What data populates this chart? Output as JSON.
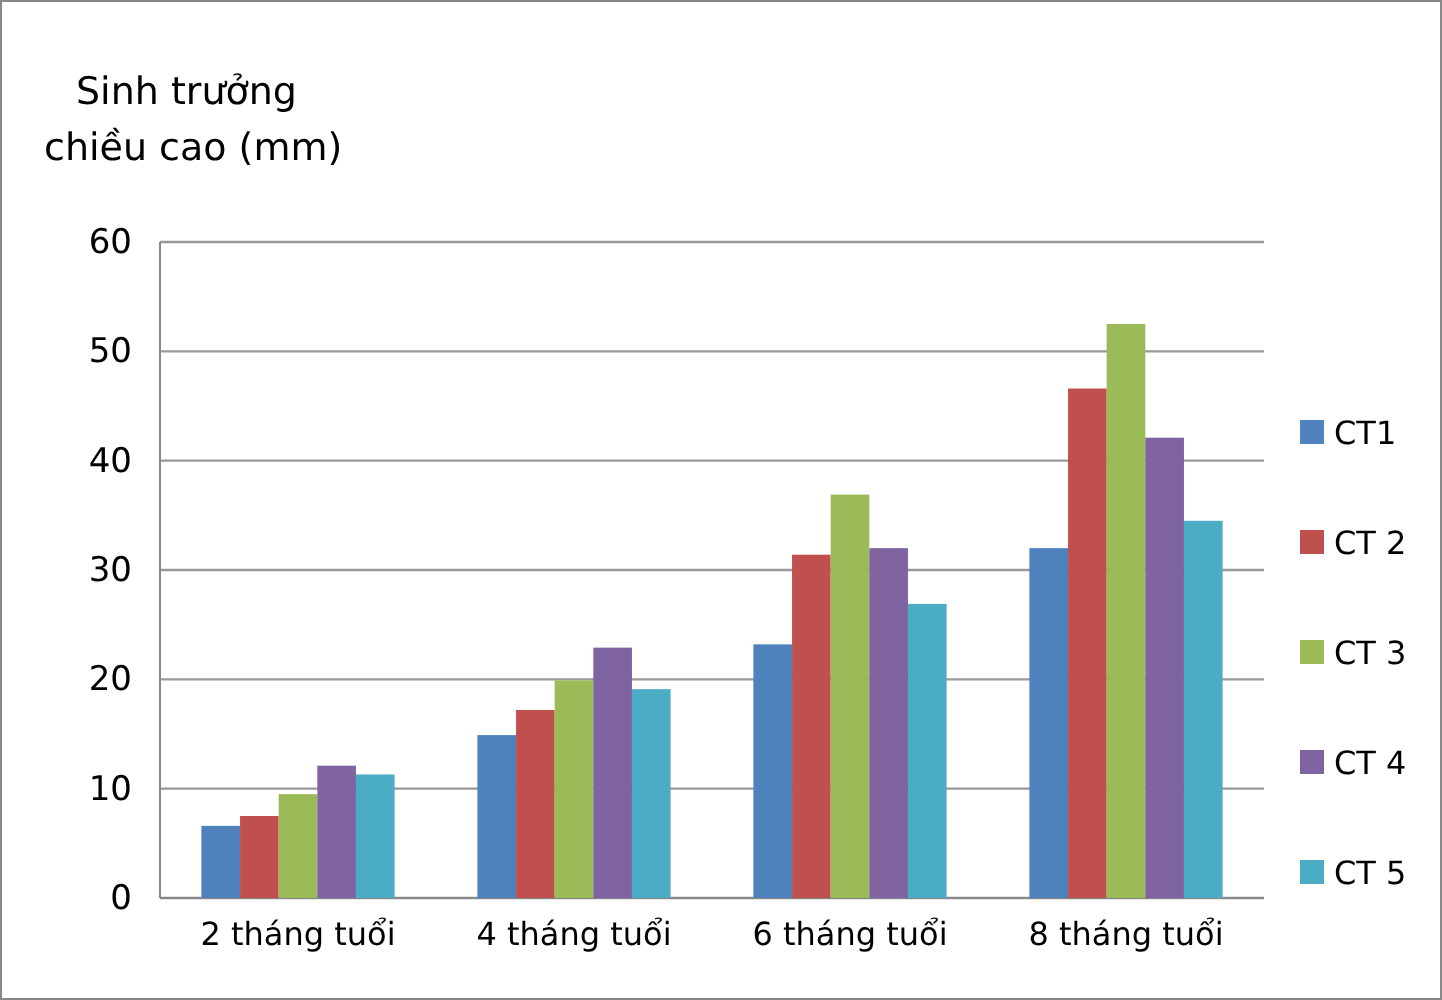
{
  "chart_data": {
    "type": "bar",
    "ylabel": "Sinh trưởng\nchiều cao (mm)",
    "categories": [
      "2 tháng tuổi",
      "4 tháng tuổi",
      "6 tháng tuổi",
      "8 tháng tuổi"
    ],
    "series": [
      {
        "name": "CT1",
        "color": "#4f81bd",
        "values": [
          6.6,
          14.9,
          23.2,
          32.0
        ]
      },
      {
        "name": "CT 2",
        "color": "#c0504d",
        "values": [
          7.5,
          17.2,
          31.4,
          46.6
        ]
      },
      {
        "name": "CT 3",
        "color": "#9bbb59",
        "values": [
          9.5,
          19.9,
          36.9,
          52.5
        ]
      },
      {
        "name": "CT 4",
        "color": "#8064a2",
        "values": [
          12.1,
          22.9,
          32.0,
          42.1
        ]
      },
      {
        "name": "CT 5",
        "color": "#4bacc6",
        "values": [
          11.3,
          19.1,
          26.9,
          34.5
        ]
      }
    ],
    "ylim": [
      0,
      60
    ],
    "yticks": [
      0,
      10,
      20,
      30,
      40,
      50,
      60
    ],
    "grid": "y",
    "legend": "right"
  }
}
